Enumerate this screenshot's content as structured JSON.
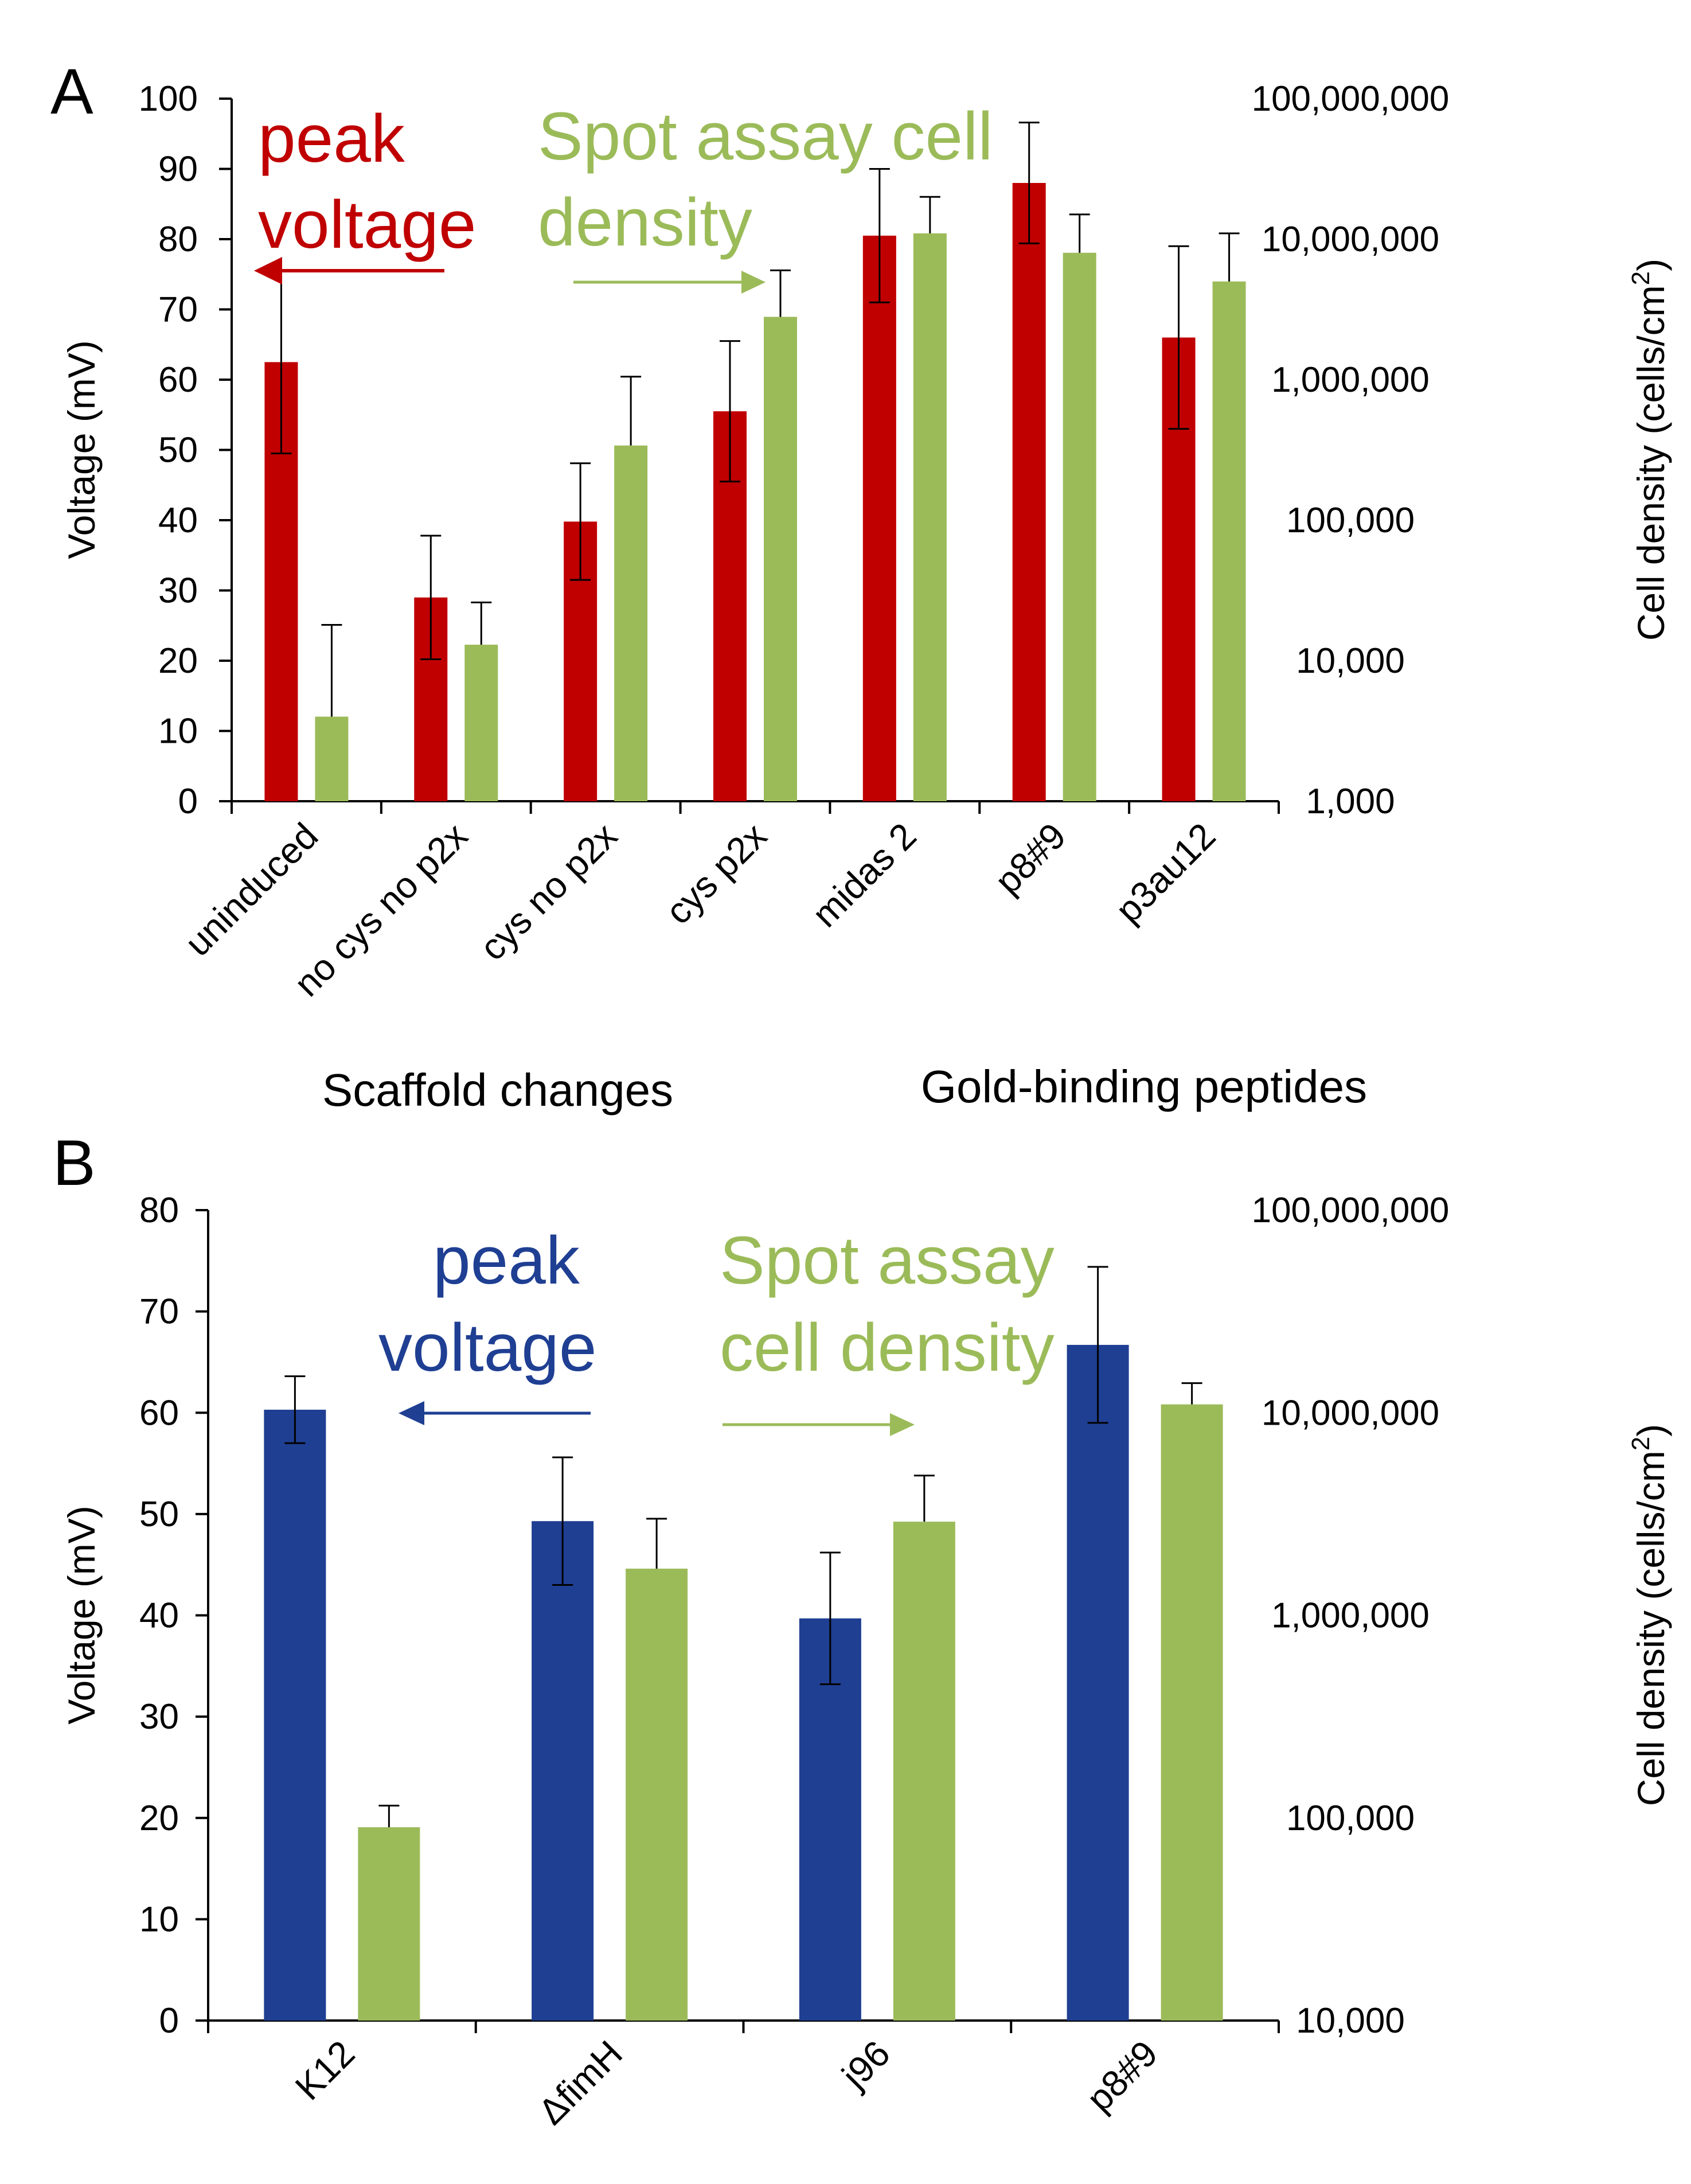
{
  "chart_data": [
    {
      "panel": "A",
      "type": "bar",
      "categories": [
        "uninduced",
        "no cys no p2x",
        "cys no p2x",
        "cys p2x",
        "midas 2",
        "p8#9",
        "p3au12"
      ],
      "ylabel": "Voltage (mV)",
      "ylim": [
        0,
        100
      ],
      "yticks": [
        "0",
        "10",
        "20",
        "30",
        "40",
        "50",
        "60",
        "70",
        "80",
        "90",
        "100"
      ],
      "y2label": "Cell density (cells/cm",
      "y2label_sup": "2",
      "y2label_end": ")",
      "y2lim": [
        1000,
        100000000
      ],
      "y2scale": "log",
      "y2ticks": [
        "1,000",
        "10,000",
        "100,000",
        "1,000,000",
        "10,000,000",
        "100,000,000"
      ],
      "series": [
        {
          "name": "peak voltage",
          "axis": "left",
          "color": "#c00000",
          "values": [
            62.5,
            29,
            39.8,
            55.5,
            80.5,
            88,
            66
          ],
          "errors": [
            13,
            8.8,
            8.3,
            10,
            9.5,
            8.6,
            13
          ]
        },
        {
          "name": "Spot assay cell density",
          "axis": "right",
          "color": "#9bbb59",
          "values": [
            4000,
            13000,
            340000,
            2800000,
            11000000,
            8000000,
            5000000
          ],
          "error_upper": [
            18000,
            26000,
            1050000,
            6000000,
            20000000,
            15000000,
            11000000
          ],
          "error_lower": [
            4000,
            13000,
            340000,
            2800000,
            11000000,
            8000000,
            5000000
          ]
        }
      ],
      "group_labels": [
        "Scaffold changes",
        "Gold-binding peptides"
      ],
      "legend_left": [
        "peak",
        "voltage"
      ],
      "legend_right": [
        "Spot assay cell",
        "density"
      ]
    },
    {
      "panel": "B",
      "type": "bar",
      "categories": [
        "K12",
        "ΔfimH",
        "j96",
        "p8#9"
      ],
      "ylabel": "Voltage (mV)",
      "ylim": [
        0,
        80
      ],
      "yticks": [
        "0",
        "10",
        "20",
        "30",
        "40",
        "50",
        "60",
        "70",
        "80"
      ],
      "y2label": "Cell density (cells/cm",
      "y2label_sup": "2",
      "y2label_end": ")",
      "y2lim": [
        10000,
        100000000
      ],
      "y2scale": "log",
      "y2ticks": [
        "10,000",
        "100,000",
        "1,000,000",
        "10,000,000",
        "100,000,000"
      ],
      "series": [
        {
          "name": "peak voltage",
          "axis": "left",
          "color": "#1f3f93",
          "values": [
            60.3,
            49.3,
            39.7,
            66.7
          ],
          "errors": [
            3.3,
            6.3,
            6.5,
            7.7
          ]
        },
        {
          "name": "Spot assay cell density",
          "axis": "right",
          "color": "#9bbb59",
          "values": [
            90000,
            1700000,
            2900000,
            11000000
          ],
          "error_upper": [
            115000,
            3000000,
            4900000,
            14000000
          ],
          "error_lower": [
            90000,
            1700000,
            2900000,
            11000000
          ]
        }
      ],
      "legend_left": [
        "peak",
        "voltage"
      ],
      "legend_right": [
        "Spot assay",
        "cell density"
      ]
    }
  ]
}
